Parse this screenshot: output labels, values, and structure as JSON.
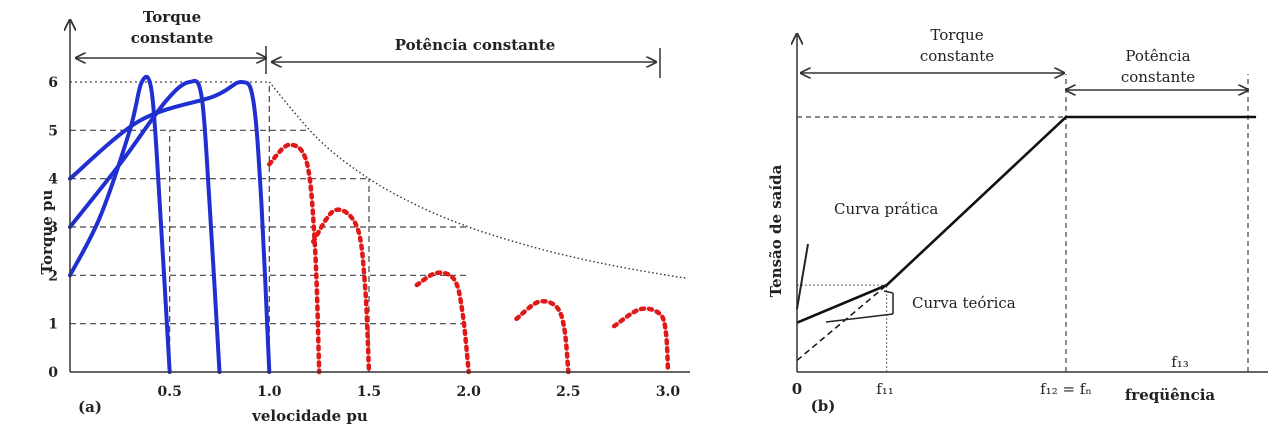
{
  "chart_data": [
    {
      "panel": "(a)",
      "type": "line",
      "xlabel": "velocidade pu",
      "ylabel": "Torque pu",
      "xlim": [
        0,
        3.1
      ],
      "ylim": [
        0,
        6.3
      ],
      "x_ticks": [
        "0.5",
        "1.0",
        "1.5",
        "2.0",
        "2.5",
        "3.0"
      ],
      "y_ticks": [
        "0",
        "1",
        "2",
        "3",
        "4",
        "5",
        "6"
      ],
      "regions": [
        {
          "label_line1": "Torque",
          "label_line2": "constante",
          "from": 0,
          "to": 1.0
        },
        {
          "label": "Potência constante",
          "from": 1.0,
          "to": 3.0
        }
      ],
      "envelope": {
        "style": "dotted",
        "points": [
          [
            1.0,
            6
          ],
          [
            1.25,
            4.8
          ],
          [
            1.5,
            4.0
          ],
          [
            1.75,
            3.43
          ],
          [
            2.0,
            3.0
          ],
          [
            2.25,
            2.67
          ],
          [
            2.5,
            2.4
          ],
          [
            2.75,
            2.18
          ],
          [
            3.0,
            2.0
          ],
          [
            3.1,
            1.94
          ]
        ]
      },
      "constant_torque_curves": [
        {
          "points": [
            [
              0,
              2
            ],
            [
              0.15,
              3.2
            ],
            [
              0.3,
              5.0
            ],
            [
              0.36,
              6.0
            ],
            [
              0.41,
              5.8
            ],
            [
              0.45,
              3.5
            ],
            [
              0.5,
              0
            ]
          ]
        },
        {
          "points": [
            [
              0,
              3
            ],
            [
              0.25,
              4.3
            ],
            [
              0.48,
              5.6
            ],
            [
              0.6,
              6.0
            ],
            [
              0.66,
              5.7
            ],
            [
              0.7,
              3.5
            ],
            [
              0.75,
              0
            ]
          ]
        },
        {
          "points": [
            [
              0,
              4
            ],
            [
              0.35,
              5.2
            ],
            [
              0.72,
              5.7
            ],
            [
              0.86,
              6.0
            ],
            [
              0.92,
              5.6
            ],
            [
              0.96,
              3.5
            ],
            [
              1.0,
              0
            ]
          ]
        }
      ],
      "constant_power_curves": [
        {
          "points": [
            [
              1.0,
              4.3
            ],
            [
              1.1,
              4.7
            ],
            [
              1.19,
              4.3
            ],
            [
              1.23,
              2.5
            ],
            [
              1.25,
              0
            ]
          ]
        },
        {
          "points": [
            [
              1.22,
              2.7
            ],
            [
              1.33,
              3.35
            ],
            [
              1.44,
              3.0
            ],
            [
              1.48,
              1.8
            ],
            [
              1.5,
              0
            ]
          ]
        },
        {
          "points": [
            [
              1.74,
              1.8
            ],
            [
              1.84,
              2.05
            ],
            [
              1.93,
              1.9
            ],
            [
              1.97,
              1.2
            ],
            [
              2.0,
              0
            ]
          ]
        },
        {
          "points": [
            [
              2.24,
              1.1
            ],
            [
              2.35,
              1.45
            ],
            [
              2.44,
              1.35
            ],
            [
              2.48,
              0.9
            ],
            [
              2.5,
              0
            ]
          ]
        },
        {
          "points": [
            [
              2.73,
              0.95
            ],
            [
              2.86,
              1.3
            ],
            [
              2.96,
              1.2
            ],
            [
              2.99,
              0.8
            ],
            [
              3.0,
              0
            ]
          ]
        }
      ],
      "colors": {
        "constant_torque": "#1f2fd0",
        "constant_power": "#e01818",
        "envelope": "#333333"
      }
    },
    {
      "panel": "(b)",
      "type": "line",
      "xlabel": "freqüência",
      "ylabel": "Tensão de saída",
      "x_ticks": [
        "0",
        "f₁₁",
        "f₁₂ = fₙ"
      ],
      "extra_x_label": "f₁₃",
      "regions": [
        {
          "label_line1": "Torque",
          "label_line2": "constante"
        },
        {
          "label_line1": "Potência",
          "label_line2": "constante"
        }
      ],
      "xlim": [
        0,
        1.3
      ],
      "ylim": [
        0,
        1.0
      ],
      "series": [
        {
          "points": [
            [
              0,
              0.17
            ],
            [
              0.25,
              0.3
            ],
            [
              0.75,
              0.88
            ],
            [
              1.28,
              0.88
            ]
          ]
        },
        {
          "style": "dashed",
          "points": [
            [
              0,
              0.04
            ],
            [
              0.25,
              0.3
            ]
          ]
        }
      ],
      "annotations": [
        "Curva prática",
        "Curva teórica"
      ]
    }
  ]
}
